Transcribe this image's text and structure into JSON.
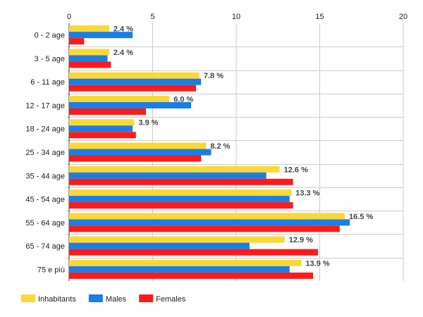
{
  "chart_data": {
    "type": "bar",
    "orientation": "horizontal",
    "categories": [
      "0 - 2 age",
      "3 - 5 age",
      "6 - 11 age",
      "12 - 17 age",
      "18 - 24 age",
      "25 - 34 age",
      "35 - 44 age",
      "45 - 54 age",
      "55 - 64 age",
      "65 - 74 age",
      "75 e più"
    ],
    "series": [
      {
        "name": "Inhabitants",
        "color": "#fcd835",
        "values": [
          2.4,
          2.4,
          7.8,
          6.0,
          3.9,
          8.2,
          12.6,
          13.3,
          16.5,
          12.9,
          13.9
        ]
      },
      {
        "name": "Males",
        "color": "#1a7ee8",
        "values": [
          3.8,
          2.3,
          7.9,
          7.3,
          3.8,
          8.5,
          11.8,
          13.2,
          16.8,
          10.8,
          13.2
        ]
      },
      {
        "name": "Females",
        "color": "#ff1a1a",
        "values": [
          0.9,
          2.5,
          7.6,
          4.6,
          4.0,
          7.9,
          13.4,
          13.4,
          16.2,
          14.9,
          14.6
        ]
      }
    ],
    "data_labels": [
      "2.4 %",
      "2.4 %",
      "7.8 %",
      "6.0 %",
      "3.9 %",
      "8.2 %",
      "12.6 %",
      "13.3 %",
      "16.5 %",
      "12.9 %",
      "13.9 %"
    ],
    "x_ticks": [
      "0",
      "5",
      "10",
      "15",
      "20"
    ],
    "xlim": [
      0,
      20
    ],
    "grid": true,
    "legend_position": "bottom-left"
  }
}
